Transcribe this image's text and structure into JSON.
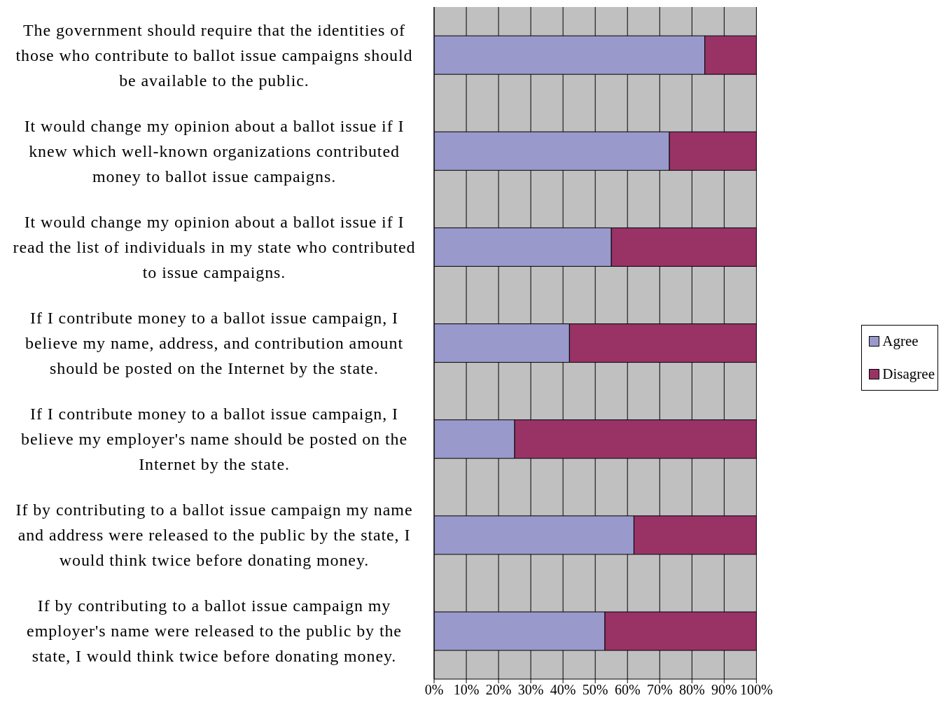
{
  "chart_data": {
    "type": "bar",
    "orientation": "horizontal",
    "stacked": true,
    "categories": [
      "The government should require that the identities of those who contribute to ballot issue campaigns should be available to the public.",
      "It would change my opinion about a ballot issue if I knew which well-known organizations contributed money to ballot issue campaigns.",
      "It would change my opinion about a ballot issue if I read the list of individuals in my state who contributed to issue campaigns.",
      "If I contribute money to a ballot issue campaign, I believe my name, address, and contribution amount should be posted on the Internet by the state.",
      "If I contribute money to a ballot issue campaign, I believe my employer's name should be posted on the Internet by the state.",
      "If by contributing to a ballot issue campaign my name and address were released to the public by the state, I would think twice before donating money.",
      "If by contributing to a ballot issue campaign my employer's name were released to the public by the state, I would think twice before donating money."
    ],
    "series": [
      {
        "name": "Agree",
        "color": "#9999cc",
        "values": [
          84,
          73,
          55,
          42,
          25,
          62,
          53
        ]
      },
      {
        "name": "Disagree",
        "color": "#993366",
        "values": [
          16,
          27,
          45,
          58,
          75,
          38,
          47
        ]
      }
    ],
    "xlim": [
      0,
      100
    ],
    "xticks": [
      {
        "value": 0,
        "label": "0%"
      },
      {
        "value": 10,
        "label": "10%"
      },
      {
        "value": 20,
        "label": "20%"
      },
      {
        "value": 30,
        "label": "30%"
      },
      {
        "value": 40,
        "label": "40%"
      },
      {
        "value": 50,
        "label": "50%"
      },
      {
        "value": 60,
        "label": "60%"
      },
      {
        "value": 70,
        "label": "70%"
      },
      {
        "value": 80,
        "label": "80%"
      },
      {
        "value": 90,
        "label": "90%"
      },
      {
        "value": 100,
        "label": "100%"
      }
    ],
    "grid": "x",
    "legend": "right"
  }
}
